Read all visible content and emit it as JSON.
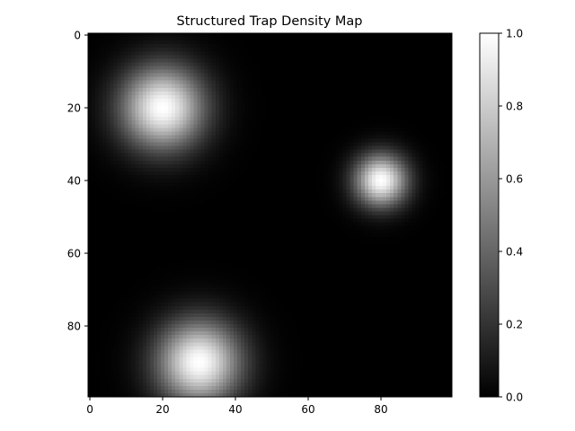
{
  "chart_data": {
    "type": "heatmap",
    "title": "Structured Trap Density Map",
    "xlabel": "",
    "ylabel": "",
    "grid": false,
    "legend": "none",
    "colormap": "gray",
    "grid_size": [
      100,
      100
    ],
    "xlim": [
      -0.5,
      99.5
    ],
    "ylim": [
      99.5,
      -0.5
    ],
    "y_axis_inverted": true,
    "x_ticks": [
      0,
      20,
      40,
      60,
      80
    ],
    "y_ticks": [
      0,
      20,
      40,
      60,
      80
    ],
    "value_range": [
      0.0,
      1.0
    ],
    "peaks": [
      {
        "x": 20,
        "y": 20,
        "amplitude": 1.0,
        "sigma": 8
      },
      {
        "x": 80,
        "y": 40,
        "amplitude": 1.0,
        "sigma": 5
      },
      {
        "x": 30,
        "y": 90,
        "amplitude": 1.0,
        "sigma": 8
      }
    ],
    "colorbar": {
      "ticks": [
        0.0,
        0.2,
        0.4,
        0.6,
        0.8,
        1.0
      ],
      "tick_labels": [
        "0.0",
        "0.2",
        "0.4",
        "0.6",
        "0.8",
        "1.0"
      ]
    }
  },
  "colors": {
    "low": "#000000",
    "high": "#ffffff",
    "axis": "#000000"
  }
}
